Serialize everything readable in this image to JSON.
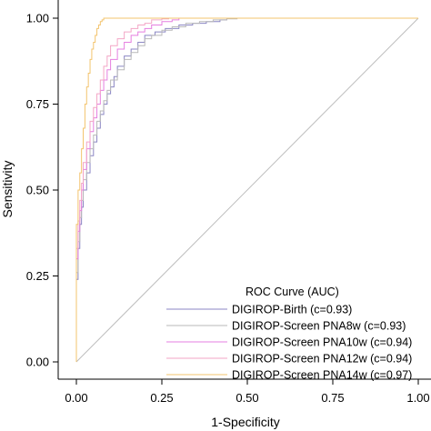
{
  "chart_data": {
    "type": "line",
    "title": "",
    "xlabel": "1-Specificity",
    "ylabel": "Sensitivity",
    "xlim": [
      0,
      1
    ],
    "ylim": [
      0,
      1
    ],
    "x_ticks": [
      "0.00",
      "0.25",
      "0.50",
      "0.75",
      "1.00"
    ],
    "y_ticks": [
      "0.00",
      "0.25",
      "0.50",
      "0.75",
      "1.00"
    ],
    "grid": false,
    "legend_position": "bottom-right",
    "legend_title": "ROC Curve (AUC)",
    "reference_line": {
      "x": [
        0,
        1
      ],
      "y": [
        0,
        1
      ],
      "color": "#bdbdbd"
    },
    "series": [
      {
        "name": "DIGIROP-Birth (c=0.93)",
        "color": "#8b86c4",
        "x": [
          0,
          0,
          0.005,
          0.01,
          0.015,
          0.02,
          0.03,
          0.04,
          0.05,
          0.06,
          0.07,
          0.08,
          0.09,
          0.1,
          0.11,
          0.12,
          0.14,
          0.16,
          0.18,
          0.2,
          0.23,
          0.26,
          0.3,
          0.34,
          0.38,
          0.42,
          0.44,
          0.44,
          1
        ],
        "y": [
          0,
          0.12,
          0.24,
          0.33,
          0.4,
          0.45,
          0.5,
          0.55,
          0.6,
          0.64,
          0.68,
          0.72,
          0.75,
          0.78,
          0.8,
          0.83,
          0.86,
          0.89,
          0.91,
          0.93,
          0.95,
          0.96,
          0.97,
          0.98,
          0.985,
          0.99,
          0.995,
          1,
          1
        ]
      },
      {
        "name": "DIGIROP-Screen PNA8w (c=0.93)",
        "color": "#b9b9b9",
        "x": [
          0,
          0,
          0.005,
          0.01,
          0.015,
          0.02,
          0.03,
          0.04,
          0.05,
          0.06,
          0.07,
          0.08,
          0.09,
          0.1,
          0.12,
          0.14,
          0.16,
          0.18,
          0.2,
          0.22,
          0.25,
          0.28,
          0.32,
          0.36,
          0.4,
          0.44,
          0.47,
          0.47,
          1
        ],
        "y": [
          0,
          0.14,
          0.26,
          0.35,
          0.42,
          0.47,
          0.53,
          0.58,
          0.62,
          0.66,
          0.7,
          0.73,
          0.76,
          0.79,
          0.82,
          0.85,
          0.88,
          0.9,
          0.92,
          0.94,
          0.95,
          0.965,
          0.975,
          0.985,
          0.99,
          0.995,
          0.998,
          1,
          1
        ]
      },
      {
        "name": "DIGIROP-Screen PNA10w (c=0.94)",
        "color": "#e57fe0",
        "x": [
          0,
          0,
          0.005,
          0.01,
          0.015,
          0.02,
          0.03,
          0.04,
          0.05,
          0.06,
          0.07,
          0.08,
          0.09,
          0.1,
          0.12,
          0.14,
          0.16,
          0.18,
          0.2,
          0.22,
          0.25,
          0.28,
          0.3,
          0.3,
          1
        ],
        "y": [
          0,
          0.16,
          0.3,
          0.38,
          0.44,
          0.5,
          0.56,
          0.62,
          0.67,
          0.71,
          0.75,
          0.79,
          0.82,
          0.85,
          0.88,
          0.91,
          0.93,
          0.95,
          0.96,
          0.97,
          0.98,
          0.99,
          0.995,
          1,
          1
        ]
      },
      {
        "name": "DIGIROP-Screen PNA12w (c=0.94)",
        "color": "#f3a6c6",
        "x": [
          0,
          0,
          0.005,
          0.01,
          0.015,
          0.02,
          0.03,
          0.04,
          0.05,
          0.06,
          0.07,
          0.08,
          0.09,
          0.1,
          0.12,
          0.14,
          0.16,
          0.18,
          0.2,
          0.22,
          0.25,
          0.27,
          0.27,
          1
        ],
        "y": [
          0,
          0.18,
          0.33,
          0.41,
          0.47,
          0.52,
          0.58,
          0.64,
          0.7,
          0.74,
          0.78,
          0.82,
          0.86,
          0.89,
          0.92,
          0.94,
          0.96,
          0.97,
          0.98,
          0.985,
          0.995,
          0.998,
          1,
          1
        ]
      },
      {
        "name": "DIGIROP-Screen PNA14w (c=0.97)",
        "color": "#f3c46e",
        "x": [
          0,
          0,
          0.005,
          0.01,
          0.015,
          0.02,
          0.025,
          0.03,
          0.035,
          0.04,
          0.045,
          0.05,
          0.055,
          0.06,
          0.065,
          0.07,
          0.075,
          0.08,
          0.08,
          1
        ],
        "y": [
          0,
          0.2,
          0.4,
          0.5,
          0.55,
          0.62,
          0.68,
          0.75,
          0.8,
          0.84,
          0.88,
          0.91,
          0.93,
          0.95,
          0.97,
          0.98,
          0.99,
          0.995,
          1,
          1
        ]
      }
    ]
  }
}
